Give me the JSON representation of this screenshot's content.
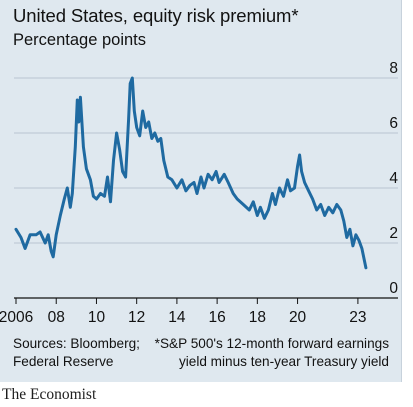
{
  "title": "United States, equity risk premium*",
  "subtitle": "Percentage points",
  "source": {
    "line1": "Sources: Bloomberg;",
    "line2": "Federal Reserve"
  },
  "footnote": {
    "line1": "*S&P 500's 12-month forward earnings",
    "line2": "yield minus ten-year Treasury yield"
  },
  "brand": "The Economist",
  "colors": {
    "background": "#dfe8ef",
    "line": "#1f6aa1",
    "grid": "#b9c5d0",
    "axis": "#121212"
  },
  "chart_data": {
    "type": "line",
    "title": "United States, equity risk premium*",
    "ylabel": "Percentage points",
    "ylim": [
      0,
      8
    ],
    "yticks": [
      0,
      2,
      4,
      6,
      8
    ],
    "ytick_labels": [
      "0",
      "2",
      "4",
      "6",
      "8"
    ],
    "xlim": [
      2005.9,
      2023.9
    ],
    "xticks": [
      2006,
      2008,
      2010,
      2012,
      2014,
      2016,
      2018,
      2020,
      2023
    ],
    "xtick_labels": [
      "2006",
      "08",
      "10",
      "12",
      "14",
      "16",
      "18",
      "20",
      "23"
    ],
    "grid": true,
    "series": [
      {
        "values": [
          [
            2006.0,
            2.5
          ],
          [
            2006.25,
            2.2
          ],
          [
            2006.45,
            1.8
          ],
          [
            2006.7,
            2.3
          ],
          [
            2007.0,
            2.3
          ],
          [
            2007.2,
            2.4
          ],
          [
            2007.45,
            2.0
          ],
          [
            2007.6,
            2.3
          ],
          [
            2007.75,
            1.7
          ],
          [
            2007.85,
            1.5
          ],
          [
            2008.0,
            2.3
          ],
          [
            2008.2,
            3.0
          ],
          [
            2008.4,
            3.6
          ],
          [
            2008.55,
            4.0
          ],
          [
            2008.7,
            3.3
          ],
          [
            2008.8,
            3.8
          ],
          [
            2008.95,
            5.5
          ],
          [
            2009.05,
            7.2
          ],
          [
            2009.12,
            6.4
          ],
          [
            2009.2,
            7.3
          ],
          [
            2009.35,
            5.5
          ],
          [
            2009.5,
            4.7
          ],
          [
            2009.7,
            4.3
          ],
          [
            2009.85,
            3.7
          ],
          [
            2010.0,
            3.6
          ],
          [
            2010.2,
            3.8
          ],
          [
            2010.4,
            3.7
          ],
          [
            2010.55,
            4.4
          ],
          [
            2010.7,
            3.5
          ],
          [
            2010.85,
            5.0
          ],
          [
            2011.0,
            6.0
          ],
          [
            2011.15,
            5.4
          ],
          [
            2011.3,
            4.6
          ],
          [
            2011.45,
            4.4
          ],
          [
            2011.6,
            6.5
          ],
          [
            2011.68,
            7.8
          ],
          [
            2011.78,
            8.0
          ],
          [
            2011.88,
            6.8
          ],
          [
            2012.0,
            6.2
          ],
          [
            2012.15,
            5.9
          ],
          [
            2012.3,
            6.8
          ],
          [
            2012.45,
            6.2
          ],
          [
            2012.6,
            6.4
          ],
          [
            2012.75,
            5.8
          ],
          [
            2012.9,
            6.0
          ],
          [
            2013.05,
            5.7
          ],
          [
            2013.2,
            5.8
          ],
          [
            2013.35,
            5.0
          ],
          [
            2013.55,
            4.4
          ],
          [
            2013.75,
            4.3
          ],
          [
            2014.0,
            4.0
          ],
          [
            2014.25,
            4.3
          ],
          [
            2014.45,
            3.9
          ],
          [
            2014.65,
            4.1
          ],
          [
            2014.85,
            4.2
          ],
          [
            2015.0,
            3.8
          ],
          [
            2015.2,
            4.4
          ],
          [
            2015.35,
            4.0
          ],
          [
            2015.55,
            4.5
          ],
          [
            2015.75,
            4.3
          ],
          [
            2015.95,
            4.6
          ],
          [
            2016.1,
            4.2
          ],
          [
            2016.35,
            4.5
          ],
          [
            2016.55,
            4.2
          ],
          [
            2016.8,
            3.8
          ],
          [
            2017.0,
            3.6
          ],
          [
            2017.3,
            3.4
          ],
          [
            2017.6,
            3.2
          ],
          [
            2017.8,
            3.5
          ],
          [
            2018.0,
            3.0
          ],
          [
            2018.15,
            3.3
          ],
          [
            2018.35,
            2.9
          ],
          [
            2018.55,
            3.2
          ],
          [
            2018.75,
            3.8
          ],
          [
            2018.9,
            3.4
          ],
          [
            2019.1,
            4.0
          ],
          [
            2019.3,
            3.7
          ],
          [
            2019.5,
            4.3
          ],
          [
            2019.65,
            3.9
          ],
          [
            2019.85,
            4.0
          ],
          [
            2020.0,
            4.8
          ],
          [
            2020.1,
            5.2
          ],
          [
            2020.2,
            4.6
          ],
          [
            2020.35,
            4.2
          ],
          [
            2020.55,
            3.9
          ],
          [
            2020.75,
            3.6
          ],
          [
            2020.95,
            3.2
          ],
          [
            2021.15,
            3.4
          ],
          [
            2021.35,
            3.0
          ],
          [
            2021.55,
            3.3
          ],
          [
            2021.75,
            3.1
          ],
          [
            2021.95,
            3.4
          ],
          [
            2022.15,
            3.2
          ],
          [
            2022.3,
            2.8
          ],
          [
            2022.45,
            2.2
          ],
          [
            2022.6,
            2.5
          ],
          [
            2022.75,
            1.9
          ],
          [
            2022.9,
            2.3
          ],
          [
            2023.05,
            2.1
          ],
          [
            2023.2,
            1.8
          ],
          [
            2023.4,
            1.1
          ]
        ]
      }
    ]
  }
}
